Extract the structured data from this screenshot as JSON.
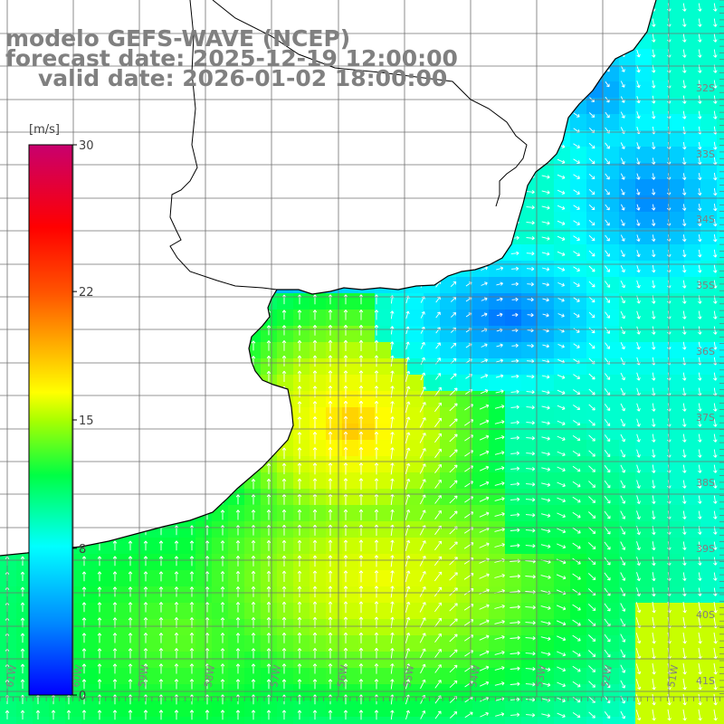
{
  "title": {
    "model": "modelo GEFS-WAVE (NCEP)",
    "forecast_date": "forecast date: 2025-12-19 12:00:00",
    "valid_date": "valid date: 2026-01-02 18:00:00"
  },
  "colorbar": {
    "unit": "[m/s]",
    "ticks": [
      {
        "label": "30",
        "value": 30
      },
      {
        "label": "22",
        "value": 22
      },
      {
        "label": "15",
        "value": 15
      },
      {
        "label": "8",
        "value": 8
      },
      {
        "label": "0",
        "value": 0
      }
    ],
    "range": [
      0,
      30
    ],
    "colors": [
      "#0000ff",
      "#00aaff",
      "#00ffff",
      "#00ff00",
      "#aaff00",
      "#ffff00",
      "#ff8800",
      "#ff0000",
      "#aa0088"
    ]
  },
  "axes": {
    "longitude_labels": [
      "61W",
      "60W",
      "59W",
      "58W",
      "57W",
      "56W",
      "55W",
      "54W",
      "53W",
      "52W",
      "51W"
    ],
    "latitude_labels": [
      "32S",
      "33S",
      "34S",
      "35S",
      "36S",
      "37S",
      "38S",
      "39S",
      "40S",
      "41S"
    ],
    "grid": true
  },
  "field": {
    "variable": "wind speed",
    "units": "m/s",
    "arrows": "wind direction",
    "land_color": "#ffffff",
    "coastline_color": "#000000"
  }
}
